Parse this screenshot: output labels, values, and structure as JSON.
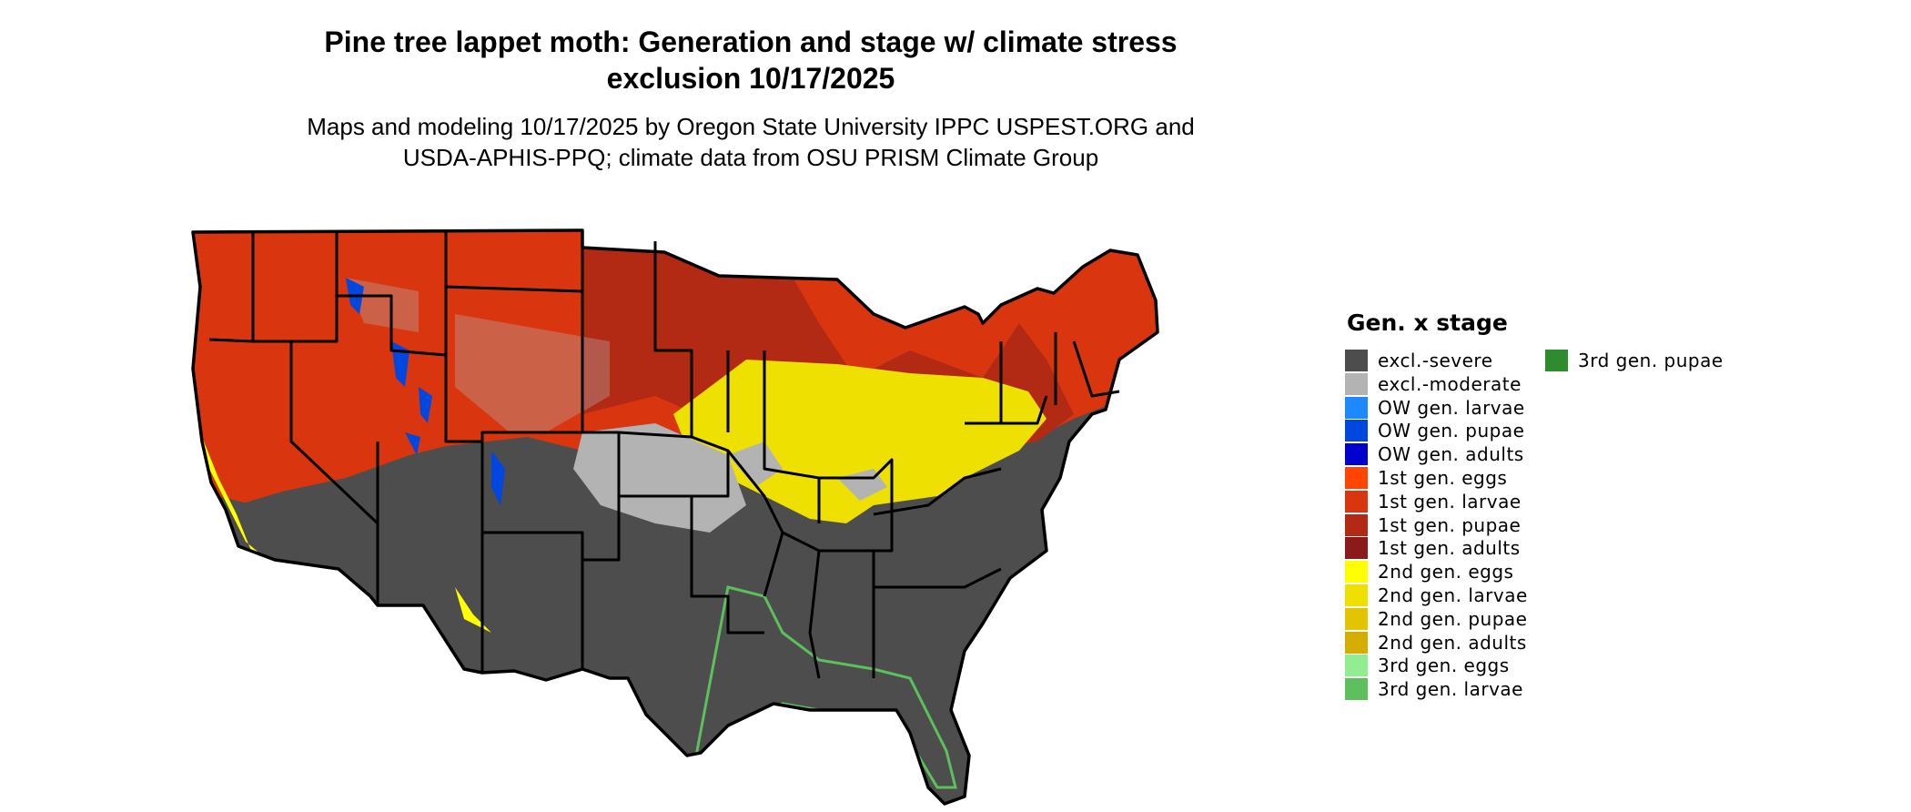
{
  "title_line1": "Pine tree lappet moth: Generation and stage w/ climate stress",
  "title_line2": "exclusion 10/17/2025",
  "subtitle_line1": "Maps and modeling 10/17/2025 by Oregon State University IPPC USPEST.ORG and",
  "subtitle_line2": "USDA-APHIS-PPQ; climate data from OSU PRISM Climate Group",
  "legend": {
    "title": "Gen. x stage",
    "items": [
      {
        "label": "excl.-severe",
        "color": "#4d4d4d"
      },
      {
        "label": "excl.-moderate",
        "color": "#b3b3b3"
      },
      {
        "label": "OW gen. larvae",
        "color": "#1e88ff"
      },
      {
        "label": "OW gen. pupae",
        "color": "#0047e0"
      },
      {
        "label": "OW gen. adults",
        "color": "#0000cd"
      },
      {
        "label": "1st gen. eggs",
        "color": "#ff4500"
      },
      {
        "label": "1st gen. larvae",
        "color": "#d9360f"
      },
      {
        "label": "1st gen. pupae",
        "color": "#b22a14"
      },
      {
        "label": "1st gen. adults",
        "color": "#8b1a1a"
      },
      {
        "label": "2nd gen. eggs",
        "color": "#ffff00"
      },
      {
        "label": "2nd gen. larvae",
        "color": "#eee000"
      },
      {
        "label": "2nd gen. pupae",
        "color": "#e2c400"
      },
      {
        "label": "2nd gen. adults",
        "color": "#d4ad00"
      },
      {
        "label": "3rd gen. eggs",
        "color": "#90ee90"
      },
      {
        "label": "3rd gen. larvae",
        "color": "#5cc05c"
      },
      {
        "label": "3rd gen. pupae",
        "color": "#2e8b2e"
      }
    ]
  },
  "map": {
    "regions": [
      {
        "name": "northwest-interior",
        "stage": "1st gen. larvae",
        "color": "#d9360f"
      },
      {
        "name": "northern-plains-upper-midwest",
        "stage": "1st gen. pupae",
        "color": "#b22a14"
      },
      {
        "name": "northeast",
        "stage": "1st gen. larvae",
        "color": "#d9360f"
      },
      {
        "name": "central-midwest-mid-atlantic-band",
        "stage": "2nd gen. larvae",
        "color": "#eee000"
      },
      {
        "name": "southern-great-basin-and-south",
        "stage": "excl.-severe",
        "color": "#4d4d4d"
      },
      {
        "name": "north-dakota-and-central-plains",
        "stage": "excl.-moderate",
        "color": "#b3b3b3"
      },
      {
        "name": "rocky-mountain-high-elevations",
        "stage": "OW gen. pupae",
        "color": "#0047e0"
      },
      {
        "name": "gulf-and-florida-coast",
        "stage": "3rd gen. larvae",
        "color": "#5cc05c"
      }
    ]
  }
}
